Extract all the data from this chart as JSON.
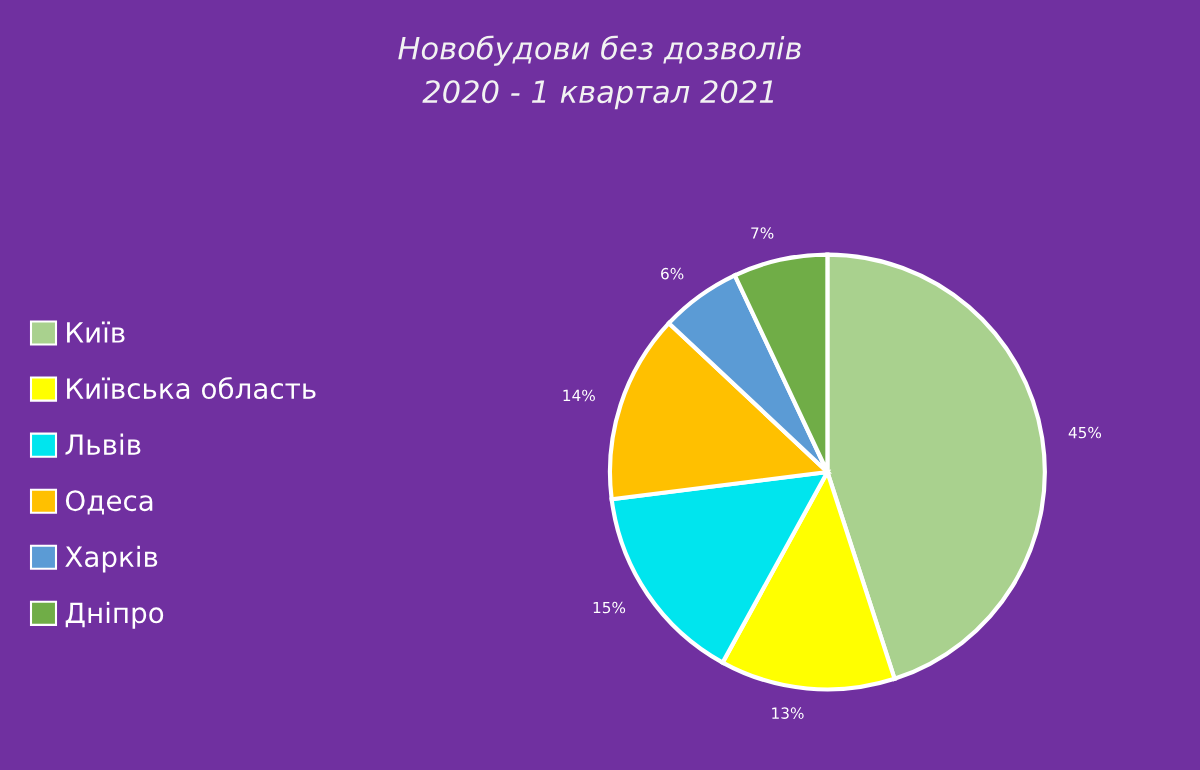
{
  "chart_data": {
    "type": "pie",
    "title": "Новобудови без дозволів\n2020 - 1 квартал 2021",
    "categories": [
      "Київ",
      "Київська область",
      "Львів",
      "Одеса",
      "Харків",
      "Дніпро"
    ],
    "values": [
      45,
      13,
      15,
      14,
      6,
      7
    ],
    "value_labels": [
      "45%",
      "13%",
      "15%",
      "14%",
      "6%",
      "7%"
    ],
    "colors": [
      "#a9d18e",
      "#ffff00",
      "#00e5ee",
      "#ffc000",
      "#5b9bd5",
      "#70ad47"
    ],
    "legend": "left"
  }
}
